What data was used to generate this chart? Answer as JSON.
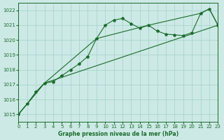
{
  "title": "Graphe pression niveau de la mer (hPa)",
  "background_color": "#cce9e5",
  "grid_color": "#aad4d0",
  "line_color": "#1a6b2a",
  "xlim": [
    0,
    23
  ],
  "ylim": [
    1014.5,
    1022.5
  ],
  "xticks": [
    0,
    1,
    2,
    3,
    4,
    5,
    6,
    7,
    8,
    9,
    10,
    11,
    12,
    13,
    14,
    15,
    16,
    17,
    18,
    19,
    20,
    21,
    22,
    23
  ],
  "yticks": [
    1015,
    1016,
    1017,
    1018,
    1019,
    1020,
    1021,
    1022
  ],
  "series1_x": [
    0,
    1,
    2,
    3,
    4,
    5,
    6,
    7,
    8,
    9,
    10,
    11,
    12,
    13,
    14,
    15,
    16,
    17,
    18,
    19,
    20,
    21,
    22,
    23
  ],
  "series1_y": [
    1015.0,
    1015.7,
    1016.5,
    1017.1,
    1017.2,
    1017.6,
    1018.0,
    1018.4,
    1018.9,
    1020.1,
    1021.0,
    1021.35,
    1021.45,
    1021.1,
    1020.8,
    1021.0,
    1020.6,
    1020.4,
    1020.35,
    1020.3,
    1020.5,
    1021.8,
    1022.1,
    1021.0
  ],
  "series2_x": [
    0,
    3,
    23
  ],
  "series2_y": [
    1015.0,
    1017.1,
    1021.0
  ],
  "series3_x": [
    0,
    3,
    9,
    15,
    21,
    22,
    23
  ],
  "series3_y": [
    1015.0,
    1017.1,
    1020.1,
    1021.0,
    1021.8,
    1022.1,
    1021.0
  ]
}
